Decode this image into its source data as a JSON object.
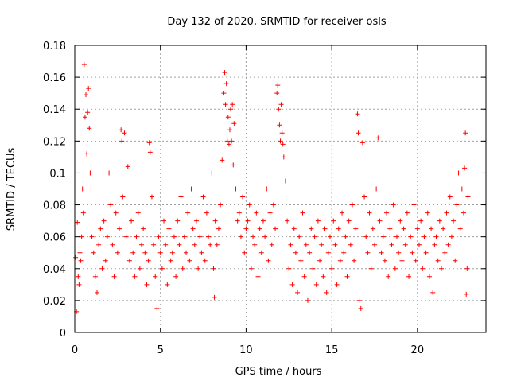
{
  "chart_data": {
    "type": "scatter",
    "title": "Day 132 of 2020, SRMTID for receiver osls",
    "xlabel": "GPS time / hours",
    "ylabel": "SRMTID / TECUs",
    "xlim": [
      0,
      24
    ],
    "ylim": [
      0,
      0.18
    ],
    "xticks": [
      "0",
      "5",
      "10",
      "15",
      "20"
    ],
    "yticks": [
      "0",
      "0.02",
      "0.04",
      "0.06",
      "0.08",
      "0.1",
      "0.12",
      "0.14",
      "0.16",
      "0.18"
    ],
    "grid": true,
    "marker": "+",
    "color": "#ff0000",
    "series": [
      {
        "points": [
          [
            0.05,
            0.047
          ],
          [
            0.1,
            0.013
          ],
          [
            0.15,
            0.069
          ],
          [
            0.2,
            0.035
          ],
          [
            0.25,
            0.03
          ],
          [
            0.3,
            0.05
          ],
          [
            0.35,
            0.045
          ],
          [
            0.4,
            0.06
          ],
          [
            0.45,
            0.09
          ],
          [
            0.5,
            0.075
          ],
          [
            0.55,
            0.168
          ],
          [
            0.6,
            0.135
          ],
          [
            0.65,
            0.149
          ],
          [
            0.7,
            0.112
          ],
          [
            0.75,
            0.138
          ],
          [
            0.8,
            0.153
          ],
          [
            0.85,
            0.128
          ],
          [
            0.9,
            0.1
          ],
          [
            0.95,
            0.09
          ],
          [
            1.0,
            0.06
          ],
          [
            1.1,
            0.05
          ],
          [
            1.2,
            0.035
          ],
          [
            1.3,
            0.025
          ],
          [
            1.4,
            0.055
          ],
          [
            1.5,
            0.065
          ],
          [
            1.6,
            0.04
          ],
          [
            1.7,
            0.07
          ],
          [
            1.8,
            0.045
          ],
          [
            1.9,
            0.06
          ],
          [
            2.0,
            0.1
          ],
          [
            2.1,
            0.08
          ],
          [
            2.2,
            0.055
          ],
          [
            2.3,
            0.035
          ],
          [
            2.4,
            0.075
          ],
          [
            2.5,
            0.05
          ],
          [
            2.6,
            0.065
          ],
          [
            2.7,
            0.127
          ],
          [
            2.75,
            0.12
          ],
          [
            2.8,
            0.085
          ],
          [
            2.9,
            0.125
          ],
          [
            3.0,
            0.06
          ],
          [
            3.1,
            0.104
          ],
          [
            3.2,
            0.045
          ],
          [
            3.3,
            0.07
          ],
          [
            3.4,
            0.05
          ],
          [
            3.5,
            0.035
          ],
          [
            3.6,
            0.06
          ],
          [
            3.7,
            0.075
          ],
          [
            3.8,
            0.04
          ],
          [
            3.9,
            0.055
          ],
          [
            4.0,
            0.065
          ],
          [
            4.1,
            0.05
          ],
          [
            4.2,
            0.03
          ],
          [
            4.3,
            0.045
          ],
          [
            4.35,
            0.119
          ],
          [
            4.4,
            0.113
          ],
          [
            4.5,
            0.085
          ],
          [
            4.6,
            0.055
          ],
          [
            4.7,
            0.035
          ],
          [
            4.8,
            0.015
          ],
          [
            4.9,
            0.06
          ],
          [
            5.0,
            0.05
          ],
          [
            5.1,
            0.04
          ],
          [
            5.2,
            0.07
          ],
          [
            5.3,
            0.055
          ],
          [
            5.4,
            0.03
          ],
          [
            5.5,
            0.065
          ],
          [
            5.6,
            0.045
          ],
          [
            5.7,
            0.05
          ],
          [
            5.8,
            0.06
          ],
          [
            5.9,
            0.035
          ],
          [
            6.0,
            0.07
          ],
          [
            6.1,
            0.055
          ],
          [
            6.2,
            0.085
          ],
          [
            6.3,
            0.04
          ],
          [
            6.4,
            0.06
          ],
          [
            6.5,
            0.05
          ],
          [
            6.6,
            0.075
          ],
          [
            6.7,
            0.045
          ],
          [
            6.8,
            0.09
          ],
          [
            6.9,
            0.065
          ],
          [
            7.0,
            0.055
          ],
          [
            7.1,
            0.07
          ],
          [
            7.2,
            0.04
          ],
          [
            7.3,
            0.06
          ],
          [
            7.4,
            0.05
          ],
          [
            7.5,
            0.085
          ],
          [
            7.6,
            0.045
          ],
          [
            7.7,
            0.075
          ],
          [
            7.8,
            0.06
          ],
          [
            7.9,
            0.055
          ],
          [
            8.0,
            0.1
          ],
          [
            8.1,
            0.04
          ],
          [
            8.15,
            0.022
          ],
          [
            8.2,
            0.07
          ],
          [
            8.3,
            0.055
          ],
          [
            8.4,
            0.065
          ],
          [
            8.5,
            0.08
          ],
          [
            8.6,
            0.108
          ],
          [
            8.7,
            0.15
          ],
          [
            8.75,
            0.163
          ],
          [
            8.8,
            0.143
          ],
          [
            8.85,
            0.156
          ],
          [
            8.9,
            0.12
          ],
          [
            8.95,
            0.135
          ],
          [
            9.0,
            0.118
          ],
          [
            9.05,
            0.127
          ],
          [
            9.1,
            0.14
          ],
          [
            9.15,
            0.12
          ],
          [
            9.2,
            0.143
          ],
          [
            9.25,
            0.105
          ],
          [
            9.3,
            0.131
          ],
          [
            9.4,
            0.09
          ],
          [
            9.5,
            0.07
          ],
          [
            9.6,
            0.075
          ],
          [
            9.7,
            0.06
          ],
          [
            9.8,
            0.085
          ],
          [
            9.9,
            0.05
          ],
          [
            10.0,
            0.065
          ],
          [
            10.1,
            0.07
          ],
          [
            10.2,
            0.08
          ],
          [
            10.3,
            0.04
          ],
          [
            10.4,
            0.06
          ],
          [
            10.5,
            0.055
          ],
          [
            10.6,
            0.075
          ],
          [
            10.7,
            0.035
          ],
          [
            10.8,
            0.065
          ],
          [
            10.9,
            0.05
          ],
          [
            11.0,
            0.07
          ],
          [
            11.1,
            0.06
          ],
          [
            11.2,
            0.09
          ],
          [
            11.3,
            0.045
          ],
          [
            11.4,
            0.075
          ],
          [
            11.5,
            0.055
          ],
          [
            11.6,
            0.08
          ],
          [
            11.7,
            0.065
          ],
          [
            11.8,
            0.15
          ],
          [
            11.85,
            0.155
          ],
          [
            11.9,
            0.14
          ],
          [
            11.95,
            0.13
          ],
          [
            12.0,
            0.12
          ],
          [
            12.05,
            0.143
          ],
          [
            12.1,
            0.125
          ],
          [
            12.15,
            0.118
          ],
          [
            12.2,
            0.11
          ],
          [
            12.3,
            0.095
          ],
          [
            12.4,
            0.07
          ],
          [
            12.5,
            0.04
          ],
          [
            12.6,
            0.055
          ],
          [
            12.7,
            0.03
          ],
          [
            12.8,
            0.065
          ],
          [
            12.9,
            0.05
          ],
          [
            13.0,
            0.025
          ],
          [
            13.1,
            0.06
          ],
          [
            13.2,
            0.045
          ],
          [
            13.3,
            0.075
          ],
          [
            13.4,
            0.035
          ],
          [
            13.5,
            0.055
          ],
          [
            13.6,
            0.02
          ],
          [
            13.7,
            0.05
          ],
          [
            13.8,
            0.065
          ],
          [
            13.9,
            0.04
          ],
          [
            14.0,
            0.06
          ],
          [
            14.1,
            0.03
          ],
          [
            14.2,
            0.07
          ],
          [
            14.3,
            0.045
          ],
          [
            14.4,
            0.055
          ],
          [
            14.5,
            0.035
          ],
          [
            14.6,
            0.065
          ],
          [
            14.7,
            0.025
          ],
          [
            14.8,
            0.05
          ],
          [
            14.9,
            0.06
          ],
          [
            15.0,
            0.04
          ],
          [
            15.1,
            0.07
          ],
          [
            15.2,
            0.055
          ],
          [
            15.3,
            0.03
          ],
          [
            15.4,
            0.065
          ],
          [
            15.5,
            0.045
          ],
          [
            15.6,
            0.075
          ],
          [
            15.7,
            0.05
          ],
          [
            15.8,
            0.06
          ],
          [
            15.9,
            0.035
          ],
          [
            16.0,
            0.07
          ],
          [
            16.1,
            0.055
          ],
          [
            16.2,
            0.08
          ],
          [
            16.3,
            0.045
          ],
          [
            16.4,
            0.065
          ],
          [
            16.5,
            0.137
          ],
          [
            16.55,
            0.125
          ],
          [
            16.6,
            0.02
          ],
          [
            16.7,
            0.015
          ],
          [
            16.8,
            0.119
          ],
          [
            16.9,
            0.085
          ],
          [
            17.0,
            0.06
          ],
          [
            17.1,
            0.05
          ],
          [
            17.2,
            0.075
          ],
          [
            17.3,
            0.04
          ],
          [
            17.4,
            0.065
          ],
          [
            17.5,
            0.055
          ],
          [
            17.6,
            0.09
          ],
          [
            17.7,
            0.122
          ],
          [
            17.8,
            0.07
          ],
          [
            17.9,
            0.05
          ],
          [
            18.0,
            0.06
          ],
          [
            18.1,
            0.045
          ],
          [
            18.2,
            0.075
          ],
          [
            18.3,
            0.035
          ],
          [
            18.4,
            0.065
          ],
          [
            18.5,
            0.055
          ],
          [
            18.6,
            0.08
          ],
          [
            18.7,
            0.04
          ],
          [
            18.8,
            0.06
          ],
          [
            18.9,
            0.05
          ],
          [
            19.0,
            0.07
          ],
          [
            19.1,
            0.045
          ],
          [
            19.2,
            0.065
          ],
          [
            19.3,
            0.055
          ],
          [
            19.4,
            0.075
          ],
          [
            19.5,
            0.035
          ],
          [
            19.6,
            0.06
          ],
          [
            19.7,
            0.05
          ],
          [
            19.8,
            0.08
          ],
          [
            19.9,
            0.045
          ],
          [
            20.0,
            0.065
          ],
          [
            20.1,
            0.055
          ],
          [
            20.2,
            0.07
          ],
          [
            20.3,
            0.04
          ],
          [
            20.4,
            0.06
          ],
          [
            20.5,
            0.05
          ],
          [
            20.6,
            0.075
          ],
          [
            20.7,
            0.035
          ],
          [
            20.8,
            0.065
          ],
          [
            20.9,
            0.025
          ],
          [
            21.0,
            0.055
          ],
          [
            21.1,
            0.06
          ],
          [
            21.2,
            0.045
          ],
          [
            21.3,
            0.07
          ],
          [
            21.4,
            0.04
          ],
          [
            21.5,
            0.065
          ],
          [
            21.6,
            0.05
          ],
          [
            21.7,
            0.075
          ],
          [
            21.8,
            0.055
          ],
          [
            21.9,
            0.085
          ],
          [
            22.0,
            0.06
          ],
          [
            22.1,
            0.07
          ],
          [
            22.2,
            0.045
          ],
          [
            22.3,
            0.08
          ],
          [
            22.4,
            0.1
          ],
          [
            22.5,
            0.065
          ],
          [
            22.6,
            0.09
          ],
          [
            22.7,
            0.075
          ],
          [
            22.75,
            0.103
          ],
          [
            22.8,
            0.125
          ],
          [
            22.85,
            0.024
          ],
          [
            22.9,
            0.04
          ],
          [
            22.95,
            0.085
          ]
        ]
      }
    ]
  }
}
